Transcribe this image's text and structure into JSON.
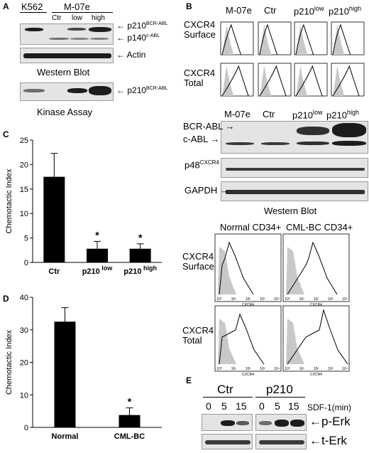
{
  "panel_a": {
    "letter": "A",
    "k562": "K562",
    "m07e": "M-07e",
    "lanes": [
      "Ctr",
      "low",
      "high"
    ],
    "p210": "p210",
    "p210_sup": "BCR-ABL",
    "p140": "p140",
    "p140_sup": "c-ABL",
    "actin": "Actin",
    "western": "Western Blot",
    "kinase_p210": "p210",
    "kinase_sup": "BCR-ABL",
    "kinase": "Kinase Assay"
  },
  "panel_b": {
    "letter": "B",
    "cols": [
      "M-07e",
      "Ctr",
      "p210",
      "p210"
    ],
    "col_sups": [
      "",
      "",
      "low",
      "high"
    ],
    "row1": [
      "CXCR4",
      "Surface"
    ],
    "row2": [
      "CXCR4",
      "Total"
    ],
    "wb_bcr": "BCR-ABL",
    "wb_cabl": "c-ABL",
    "wb_p48": "p48",
    "wb_p48_sup": "CXCR4",
    "wb_gapdh": "GAPDH",
    "wb_title": "Western Blot",
    "flow_cols": [
      "Normal CD34+",
      "CML-BC CD34+"
    ],
    "flow_row1": [
      "CXCR4",
      "Surface"
    ],
    "flow_row2": [
      "CXCR4",
      "Total"
    ],
    "axis_tick": [
      "10⁰",
      "10¹",
      "10²",
      "10³",
      "10⁴"
    ],
    "axis_label": "CXCR4"
  },
  "panel_c": {
    "letter": "C"
  },
  "panel_d": {
    "letter": "D"
  },
  "panel_e": {
    "letter": "E",
    "groups": [
      "Ctr",
      "p210"
    ],
    "times": [
      "0",
      "5",
      "15",
      "0",
      "5",
      "15"
    ],
    "sdf": "SDF-1(min)",
    "perk": "p-Erk",
    "terk": "t-Erk"
  },
  "chart_data": [
    {
      "type": "bar",
      "ylabel": "Chemotactic Index",
      "categories": [
        "Ctr",
        "p210 low",
        "p210 high"
      ],
      "values": [
        17.5,
        2.8,
        2.8
      ],
      "errors": [
        4.8,
        1.5,
        1.0
      ],
      "significance": [
        "",
        "*",
        "*"
      ],
      "ylim": [
        0,
        25
      ],
      "yticks": [
        0,
        5,
        10,
        15,
        20,
        25
      ],
      "bar_color": "#000000"
    },
    {
      "type": "bar",
      "ylabel": "Chemotactic Index",
      "categories": [
        "Normal",
        "CML-BC"
      ],
      "values": [
        32.5,
        3.8
      ],
      "errors": [
        4.3,
        2.2
      ],
      "significance": [
        "",
        "*"
      ],
      "ylim": [
        0,
        40
      ],
      "yticks": [
        0,
        10,
        20,
        30,
        40
      ],
      "bar_color": "#000000"
    }
  ]
}
